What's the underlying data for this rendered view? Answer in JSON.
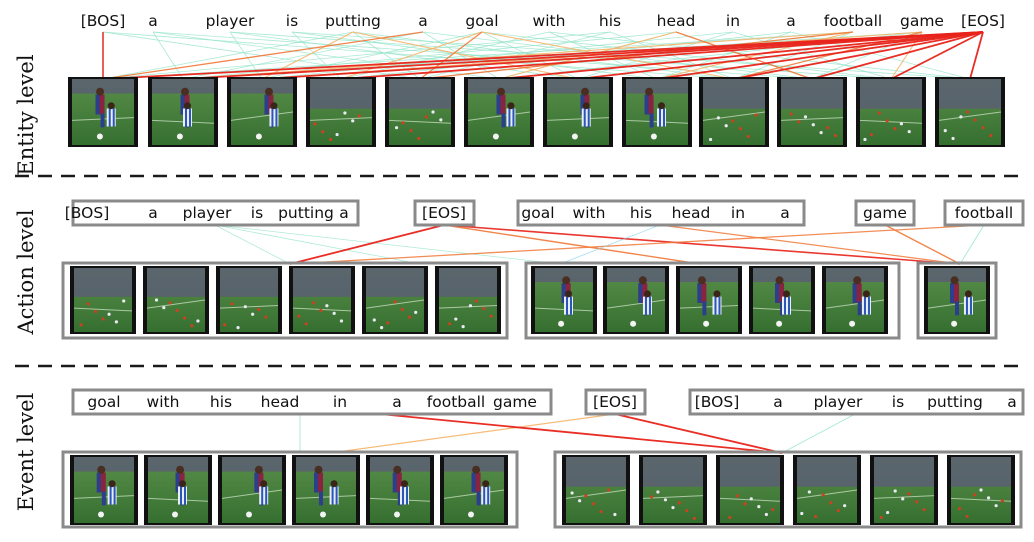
{
  "colors": {
    "line_strong": "#e8231b",
    "line_mid": "#f07a3a",
    "line_weak": "#f7b46a",
    "line_faint_a": "#8fe3c6",
    "line_faint_b": "#7fd0ee",
    "pitch": "#3f7d3a",
    "box_border": "#8a8a8a"
  },
  "levels": [
    {
      "label": "Entity level",
      "tokens": [
        "[BOS]",
        "a",
        "player",
        "is",
        "putting",
        "a",
        "goal",
        "with",
        "his",
        "head",
        "in",
        "a",
        "football",
        "game",
        "[EOS]"
      ],
      "frame_count": 12
    },
    {
      "label": "Action level",
      "token_groups": [
        [
          "[BOS]",
          "a",
          "player",
          "is",
          "putting",
          "a"
        ],
        [
          "[EOS]"
        ],
        [
          "goal",
          "with",
          "his",
          "head",
          "in",
          "a"
        ],
        [
          "game"
        ],
        [
          "football"
        ]
      ],
      "frame_groups": [
        6,
        5,
        1
      ]
    },
    {
      "label": "Event level",
      "token_groups": [
        [
          "goal",
          "with",
          "his",
          "head",
          "in",
          "a",
          "football",
          "game"
        ],
        [
          "[EOS]"
        ],
        [
          "[BOS]",
          "a",
          "player",
          "is",
          "putting",
          "a"
        ]
      ],
      "frame_groups": [
        6,
        6
      ]
    }
  ]
}
